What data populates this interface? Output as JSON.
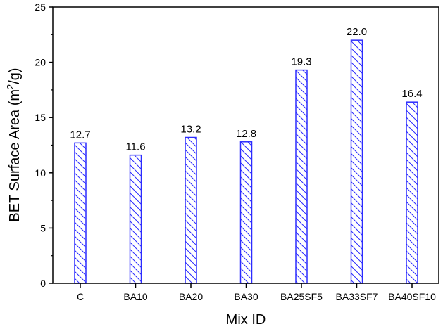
{
  "chart_data": {
    "type": "bar",
    "title": "",
    "xlabel": "Mix ID",
    "ylabel": "BET Surface Area (m2/g)",
    "ylabel_parts": {
      "main": "BET Surface Area (m",
      "sup": "2",
      "end": "/g)"
    },
    "categories": [
      "C",
      "BA10",
      "BA20",
      "BA30",
      "BA25SF5",
      "BA33SF7",
      "BA40SF10"
    ],
    "values": [
      12.7,
      11.6,
      13.2,
      12.8,
      19.3,
      22.0,
      16.4
    ],
    "value_labels": [
      "12.7",
      "11.6",
      "13.2",
      "12.8",
      "19.3",
      "22.0",
      "16.4"
    ],
    "ylim": [
      0,
      25
    ],
    "yticks": [
      0,
      5,
      10,
      15,
      20,
      25
    ],
    "grid": false,
    "legend": null,
    "bar_style": {
      "fill": "hatched",
      "color": "#2b2bff"
    }
  }
}
